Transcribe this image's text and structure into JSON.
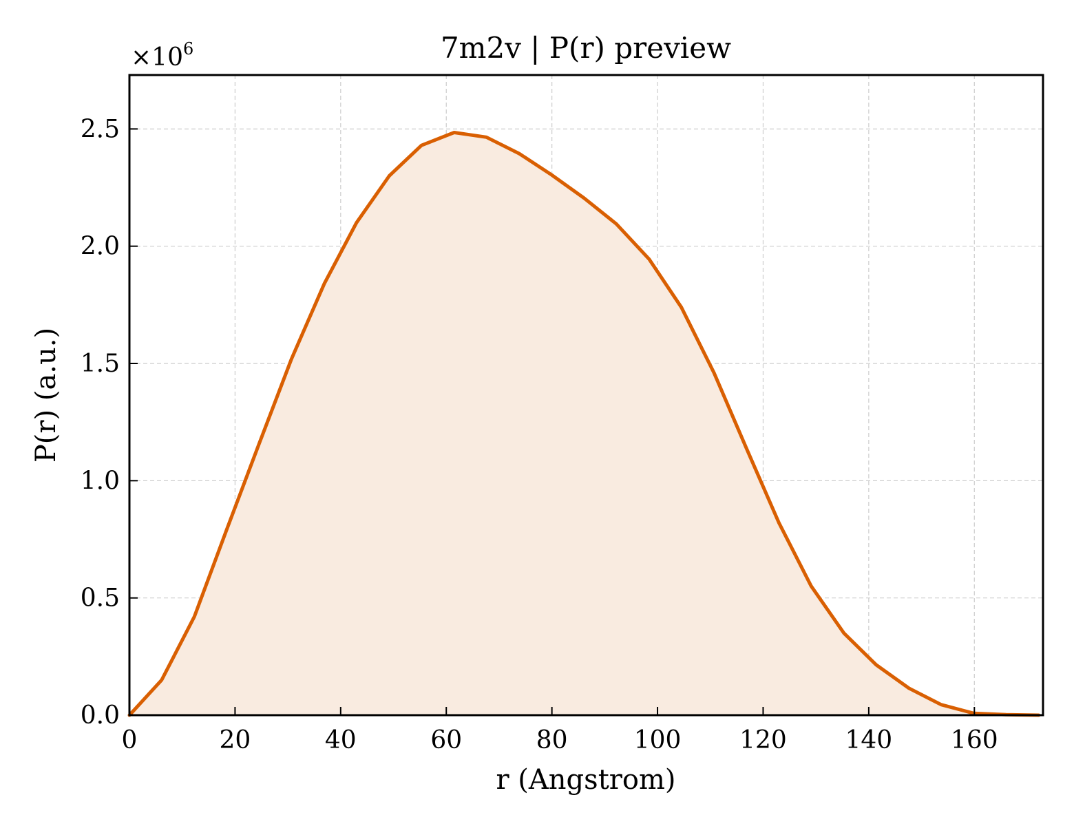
{
  "chart_data": {
    "type": "area",
    "title": "7m2v | P(r) preview",
    "xlabel": "r (Angstrom)",
    "ylabel": "P(r) (a.u.)",
    "y_multiplier": "×10",
    "y_multiplier_exp": "6",
    "xlim": [
      0,
      173
    ],
    "ylim": [
      0,
      2.73
    ],
    "x_ticks": [
      "0",
      "20",
      "40",
      "60",
      "80",
      "100",
      "120",
      "140",
      "160"
    ],
    "y_ticks": [
      "0.0",
      "0.5",
      "1.0",
      "1.5",
      "2.0",
      "2.5"
    ],
    "grid": true,
    "line_color": "#d95f02",
    "fill_color": "#f9ebe0",
    "x": [
      0,
      6.1,
      12.3,
      18.4,
      24.6,
      30.7,
      36.9,
      43.0,
      49.2,
      55.3,
      61.5,
      67.6,
      73.8,
      79.9,
      86.1,
      92.2,
      98.4,
      104.5,
      110.7,
      116.8,
      123.0,
      129.1,
      135.3,
      141.4,
      147.6,
      153.7,
      159.9,
      166.0,
      172.2
    ],
    "y": [
      0.0,
      0.15,
      0.42,
      0.79,
      1.16,
      1.52,
      1.84,
      2.1,
      2.3,
      2.43,
      2.485,
      2.465,
      2.395,
      2.305,
      2.205,
      2.095,
      1.945,
      1.74,
      1.46,
      1.14,
      0.82,
      0.55,
      0.35,
      0.215,
      0.115,
      0.045,
      0.008,
      0.002,
      0.0
    ]
  }
}
